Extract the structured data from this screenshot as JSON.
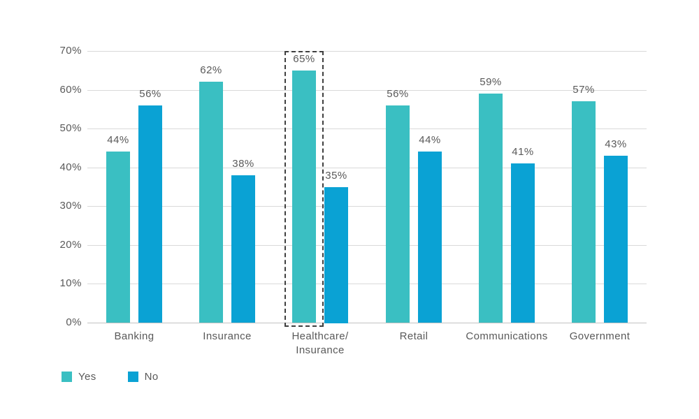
{
  "chart_data": {
    "type": "bar",
    "title": "",
    "categories": [
      "Banking",
      "Insurance",
      "Healthcare/\nInsurance",
      "Retail",
      "Communications",
      "Government"
    ],
    "series": [
      {
        "name": "Yes",
        "color": "#3abfc2",
        "values": [
          44,
          62,
          65,
          56,
          59,
          57
        ]
      },
      {
        "name": "No",
        "color": "#0aa2d4",
        "values": [
          56,
          38,
          35,
          44,
          41,
          43
        ]
      }
    ],
    "data_labels": [
      [
        "44%",
        "62%",
        "65%",
        "56%",
        "59%",
        "57%"
      ],
      [
        "56%",
        "38%",
        "35%",
        "44%",
        "41%",
        "43%"
      ]
    ],
    "y_ticks": [
      "0%",
      "10%",
      "20%",
      "30%",
      "40%",
      "50%",
      "60%",
      "70%"
    ],
    "ylim": [
      0,
      70
    ],
    "grid": true,
    "legend_position": "bottom-left",
    "legend_labels": [
      "Yes",
      "No"
    ],
    "highlight": {
      "category_index": 2,
      "series_index": 0,
      "style": "dashed-box",
      "color": "#3f3f3f"
    },
    "colors": {
      "yes_bar": "#3abfc2",
      "no_bar": "#0aa2d4",
      "text": "#595959",
      "gridline": "#d9d9d9",
      "axis_line": "#c2c2c2",
      "background": "#ffffff"
    }
  }
}
